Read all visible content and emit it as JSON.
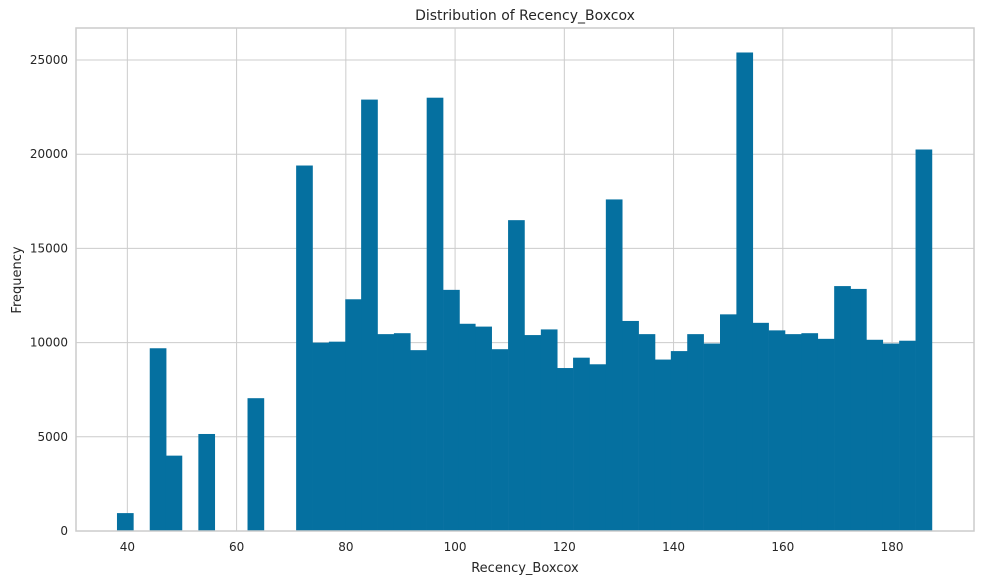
{
  "chart_data": {
    "type": "bar",
    "title": "Distribution of Recency_Boxcox",
    "xlabel": "Recency_Boxcox",
    "ylabel": "Frequency",
    "xlim": [
      30.6,
      195.0
    ],
    "ylim": [
      0,
      26700
    ],
    "x_ticks": [
      40,
      60,
      80,
      100,
      120,
      140,
      160,
      180
    ],
    "y_ticks": [
      0,
      5000,
      10000,
      15000,
      20000,
      25000
    ],
    "grid": true,
    "bar_color": "#0570a0",
    "bin_width": 2.98,
    "bin_starts": [
      38.1,
      41.1,
      44.1,
      47.0,
      50.0,
      53.0,
      56.0,
      59.0,
      62.0,
      64.9,
      67.9,
      70.9,
      73.9,
      76.9,
      79.9,
      82.8,
      85.8,
      88.8,
      91.8,
      94.8,
      97.8,
      100.7,
      103.7,
      106.7,
      109.7,
      112.7,
      115.7,
      118.6,
      121.6,
      124.6,
      127.6,
      130.6,
      133.6,
      136.5,
      139.5,
      142.5,
      145.5,
      148.5,
      151.5,
      154.4,
      157.4,
      160.4,
      163.4,
      166.4,
      169.4,
      172.3,
      175.3,
      178.3,
      181.3,
      184.3
    ],
    "values": [
      950,
      0,
      9700,
      4000,
      0,
      5150,
      0,
      0,
      7050,
      0,
      0,
      19400,
      10000,
      10050,
      12300,
      22900,
      10450,
      10500,
      9600,
      23000,
      12800,
      11000,
      10850,
      9650,
      16500,
      10400,
      10700,
      8650,
      9200,
      8850,
      17600,
      11150,
      10450,
      9100,
      9550,
      10450,
      9950,
      11500,
      25400,
      11050,
      10650,
      10450,
      10500,
      10200,
      13000,
      12850,
      10150,
      9950,
      10100,
      20250
    ]
  }
}
